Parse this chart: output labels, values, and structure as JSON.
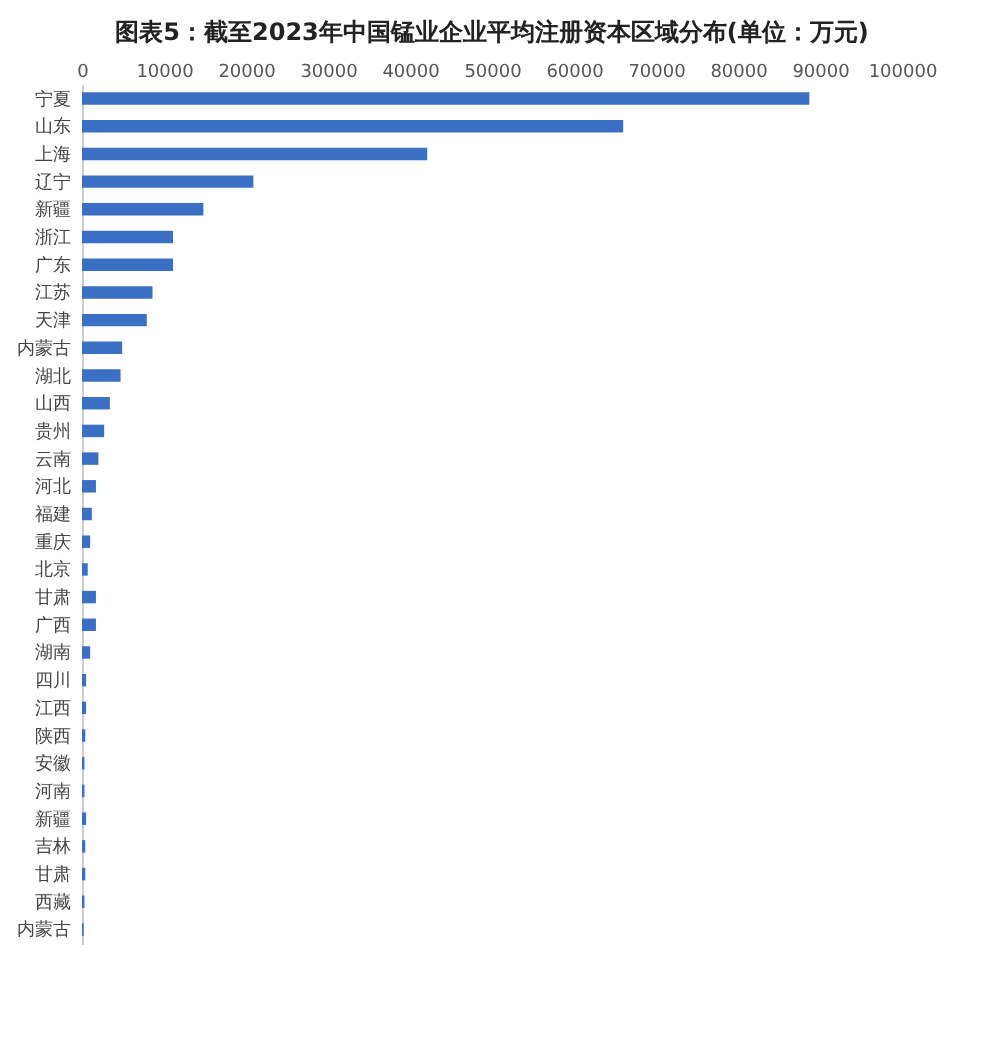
{
  "chart_data": {
    "type": "bar",
    "orientation": "horizontal",
    "title": "图表5：截至2023年中国锰业企业平均注册资本区域分布(单位：万元)",
    "categories": [
      "宁夏",
      "山东",
      "上海",
      "辽宁",
      "新疆",
      "浙江",
      "广东",
      "江苏",
      "天津",
      "内蒙古",
      "湖北",
      "山西",
      "贵州",
      "云南",
      "河北",
      "福建",
      "重庆",
      "北京",
      "甘肃",
      "广西",
      "湖南",
      "四川",
      "江西",
      "陕西",
      "安徽",
      "河南",
      "新疆",
      "吉林",
      "甘肃",
      "西藏",
      "内蒙古"
    ],
    "values": [
      88700,
      66000,
      42100,
      20900,
      14800,
      11100,
      11100,
      8600,
      7900,
      4900,
      4700,
      3400,
      2700,
      2000,
      1700,
      1200,
      1000,
      700,
      1700,
      1700,
      1000,
      500,
      500,
      400,
      300,
      300,
      500,
      400,
      400,
      300,
      200
    ],
    "color": "#3a6fc4",
    "xlim": [
      0,
      100000
    ],
    "xticks": [
      0,
      10000,
      20000,
      30000,
      40000,
      50000,
      60000,
      70000,
      80000,
      90000,
      100000
    ],
    "grid": false
  }
}
